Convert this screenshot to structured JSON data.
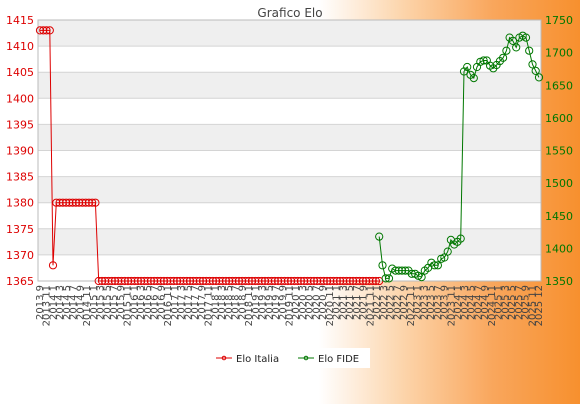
{
  "chart_data": {
    "type": "line",
    "title": "Grafico Elo",
    "y_left": {
      "min": 1365,
      "max": 1415,
      "step": 5,
      "color": "#dd0000"
    },
    "y_right": {
      "min": 1350,
      "max": 1750,
      "step": 50,
      "color": "#007700"
    },
    "grid": true,
    "legend_position": "bottom",
    "x_tick_labels": [
      "2013 9",
      "2013 11",
      "2014 1",
      "2014 3",
      "2014 5",
      "2014 7",
      "2014 9",
      "2014 11",
      "2015 1",
      "2015 3",
      "2015 5",
      "2015 7",
      "2015 9",
      "2015 11",
      "2016 1",
      "2016 3",
      "2016 5",
      "2016 7",
      "2016 9",
      "2016 11",
      "2017 1",
      "2017 3",
      "2017 5",
      "2017 7",
      "2017 9",
      "2017 11",
      "2018 1",
      "2018 3",
      "2018 5",
      "2018 7",
      "2018 9",
      "2018 11",
      "2019 1",
      "2019 3",
      "2019 5",
      "2019 7",
      "2019 9",
      "2019 11",
      "2020 1",
      "2020 3",
      "2020 5",
      "2020 7",
      "2020 9",
      "2020 11",
      "2021 1",
      "2021 3",
      "2021 5",
      "2021 7",
      "2021 9",
      "2021 11",
      "2022 1",
      "2022 3",
      "2022 5",
      "2022 7",
      "2022 9",
      "2022 11",
      "2023 1",
      "2023 3",
      "2023 5",
      "2023 7",
      "2023 9",
      "2023 11",
      "2024 1",
      "2024 3",
      "2024 5",
      "2024 7",
      "2024 9",
      "2024 11",
      "2025 1",
      "2025 3",
      "2025 5",
      "2025 7",
      "2025 9",
      "2025 11",
      "2025 12"
    ],
    "series": [
      {
        "name": "Elo Italia",
        "axis": "left",
        "color": "#dd0000",
        "values": [
          1413,
          1413,
          1413,
          1413,
          1368,
          1380,
          1380,
          1380,
          1380,
          1380,
          1380,
          1380,
          1380,
          1380,
          1380,
          1380,
          1380,
          1380,
          1365,
          1365,
          1365,
          1365,
          1365,
          1365,
          1365,
          1365,
          1365,
          1365,
          1365,
          1365,
          1365,
          1365,
          1365,
          1365,
          1365,
          1365,
          1365,
          1365,
          1365,
          1365,
          1365,
          1365,
          1365,
          1365,
          1365,
          1365,
          1365,
          1365,
          1365,
          1365,
          1365,
          1365,
          1365,
          1365,
          1365,
          1365,
          1365,
          1365,
          1365,
          1365,
          1365,
          1365,
          1365,
          1365,
          1365,
          1365,
          1365,
          1365,
          1365,
          1365,
          1365,
          1365,
          1365,
          1365,
          1365,
          1365,
          1365,
          1365,
          1365,
          1365,
          1365,
          1365,
          1365,
          1365,
          1365,
          1365,
          1365,
          1365,
          1365,
          1365,
          1365,
          1365,
          1365,
          1365,
          1365,
          1365,
          1365,
          1365,
          1365,
          1365,
          1365,
          1365,
          1365,
          1365,
          1365
        ]
      },
      {
        "name": "Elo FIDE",
        "axis": "right",
        "color": "#007700",
        "start_index": 104,
        "values": [
          1418,
          1374,
          1354,
          1354,
          1369,
          1366,
          1366,
          1366,
          1366,
          1366,
          1361,
          1361,
          1358,
          1356,
          1366,
          1370,
          1378,
          1374,
          1374,
          1384,
          1386,
          1395,
          1413,
          1406,
          1410,
          1415,
          1671,
          1678,
          1666,
          1661,
          1678,
          1686,
          1688,
          1688,
          1680,
          1676,
          1681,
          1687,
          1692,
          1703,
          1723,
          1718,
          1708,
          1723,
          1726,
          1723,
          1703,
          1682,
          1672,
          1662
        ]
      }
    ]
  }
}
